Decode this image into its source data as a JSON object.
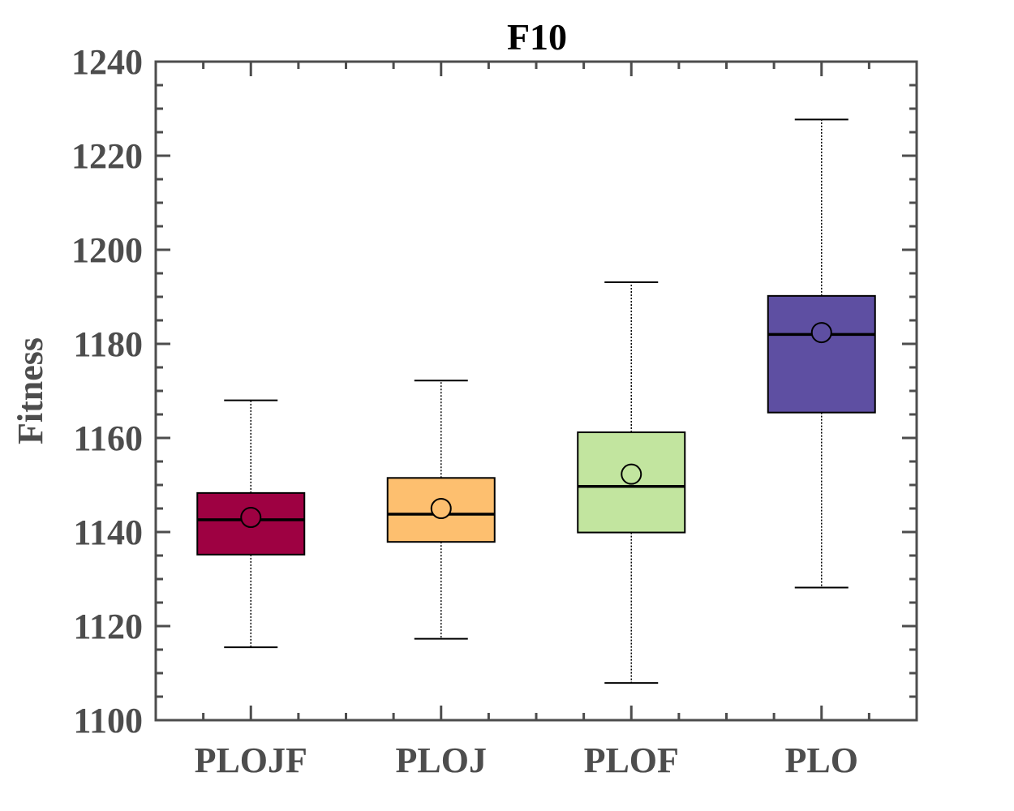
{
  "chart_data": {
    "type": "boxplot",
    "title": "F10",
    "xlabel": "",
    "ylabel": "Fitness",
    "ylim": [
      1100,
      1240
    ],
    "yticks": [
      1100,
      1120,
      1140,
      1160,
      1180,
      1200,
      1220,
      1240
    ],
    "categories": [
      "PLOJF",
      "PLOJ",
      "PLOF",
      "PLO"
    ],
    "series": [
      {
        "name": "PLOJF",
        "color": "#9e0142",
        "whisker_low": 1115.5,
        "q1": 1135.2,
        "median": 1142.6,
        "q3": 1148.3,
        "whisker_high": 1168.0,
        "mean": 1143.1
      },
      {
        "name": "PLOJ",
        "color": "#fdbf6f",
        "whisker_low": 1117.3,
        "q1": 1137.9,
        "median": 1143.8,
        "q3": 1151.5,
        "whisker_high": 1172.2,
        "mean": 1145.0
      },
      {
        "name": "PLOF",
        "color": "#c2e59f",
        "whisker_low": 1107.9,
        "q1": 1139.9,
        "median": 1149.7,
        "q3": 1161.2,
        "whisker_high": 1193.1,
        "mean": 1152.3
      },
      {
        "name": "PLO",
        "color": "#5e4fa2",
        "whisker_low": 1128.2,
        "q1": 1165.4,
        "median": 1182.0,
        "q3": 1190.2,
        "whisker_high": 1227.7,
        "mean": 1182.4
      }
    ]
  }
}
